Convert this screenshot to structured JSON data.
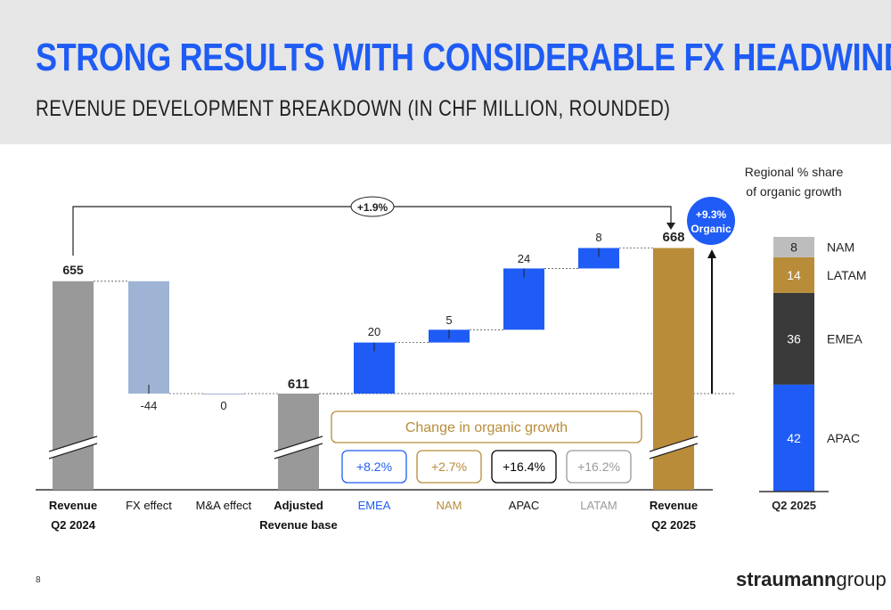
{
  "header": {
    "title": "STRONG RESULTS WITH CONSIDERABLE FX HEADWINDS",
    "subtitle": "REVENUE DEVELOPMENT BREAKDOWN (IN CHF MILLION, ROUNDED)"
  },
  "footer": {
    "page_number": "8",
    "logo_bold": "straumann",
    "logo_light": "group"
  },
  "colors": {
    "blue": "#1f5cf5",
    "gray": "#999999",
    "light_blue": "#9fb4d5",
    "gold": "#b88c39",
    "dark": "#3a3a3a",
    "light_gray": "#bdbdbd",
    "title_blue": "#1f5cf5"
  },
  "chart_data": [
    {
      "type": "waterfall",
      "categories": [
        {
          "line1": "Revenue",
          "line2": "Q2 2024"
        },
        {
          "line1": "FX effect",
          "line2": ""
        },
        {
          "line1": "M&A effect",
          "line2": ""
        },
        {
          "line1": "Adjusted",
          "line2": "Revenue base"
        },
        {
          "line1": "EMEA",
          "line2": ""
        },
        {
          "line1": "NAM",
          "line2": ""
        },
        {
          "line1": "APAC",
          "line2": ""
        },
        {
          "line1": "LATAM",
          "line2": ""
        },
        {
          "line1": "Revenue",
          "line2": "Q2 2025"
        }
      ],
      "values": [
        655,
        -44,
        0,
        611,
        20,
        5,
        24,
        8,
        668
      ],
      "value_labels": [
        "655",
        "-44",
        "0",
        "611",
        "20",
        "5",
        "24",
        "8",
        "668"
      ],
      "kinds": [
        "total",
        "delta",
        "delta",
        "total",
        "delta",
        "delta",
        "delta",
        "delta",
        "total"
      ],
      "bar_colors": [
        "#999999",
        "#9fb4d5",
        "#9fb4d5",
        "#999999",
        "#1f5cf5",
        "#1f5cf5",
        "#1f5cf5",
        "#1f5cf5",
        "#b88c39"
      ],
      "axis_broken": true,
      "bracket_label": "+1.9%",
      "organic_badge": {
        "line1": "+9.3%",
        "line2": "Organic"
      },
      "organic_box": {
        "title": "Change in organic growth",
        "items": [
          {
            "label": "+8.2%",
            "color": "#1f5cf5"
          },
          {
            "label": "+2.7%",
            "color": "#b88c39"
          },
          {
            "label": "+16.4%",
            "color": "#000000"
          },
          {
            "label": "+16.2%",
            "color": "#9a9a9a"
          }
        ]
      }
    },
    {
      "type": "stacked_bar",
      "title": "Regional % share of organic growth",
      "category": "Q2 2025",
      "series": [
        {
          "name": "APAC",
          "value": 42,
          "color": "#1f5cf5"
        },
        {
          "name": "EMEA",
          "value": 36,
          "color": "#3a3a3a"
        },
        {
          "name": "LATAM",
          "value": 14,
          "color": "#b88c39"
        },
        {
          "name": "NAM",
          "value": 8,
          "color": "#bdbdbd"
        }
      ]
    }
  ]
}
